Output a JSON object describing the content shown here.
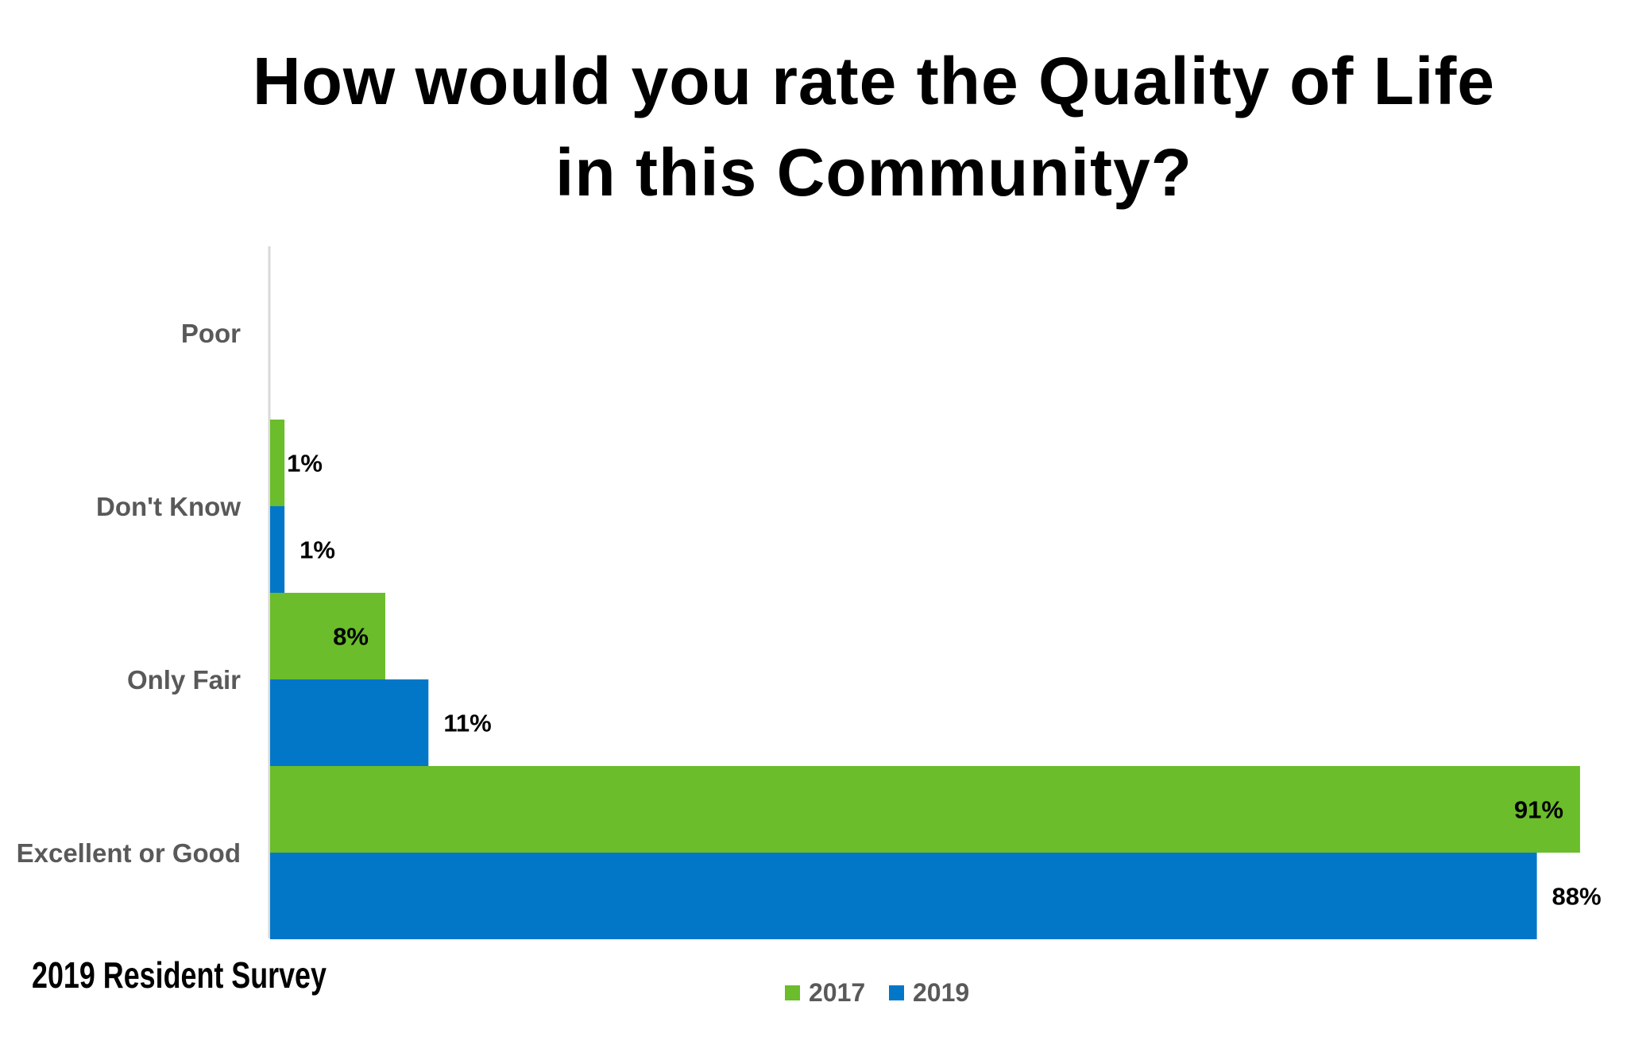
{
  "chart_data": {
    "type": "bar",
    "orientation": "horizontal",
    "title_lines": [
      "How would you rate the Quality of Life",
      "in this Community?"
    ],
    "categories": [
      "Poor",
      "Don't Know",
      "Only Fair",
      "Excellent or Good"
    ],
    "series": [
      {
        "name": "2017",
        "color": "#6bbd2b",
        "values": [
          null,
          1,
          8,
          91
        ],
        "labels": [
          "",
          "1%",
          "8%",
          "91%"
        ]
      },
      {
        "name": "2019",
        "color": "#0277c8",
        "values": [
          null,
          1,
          11,
          88
        ],
        "labels": [
          "",
          "1%",
          "11%",
          "88%"
        ]
      }
    ],
    "xlim": [
      0,
      100
    ],
    "grid": false,
    "legend_position": "bottom",
    "xlabel": "",
    "ylabel": ""
  },
  "footer": "2019 Resident Survey"
}
